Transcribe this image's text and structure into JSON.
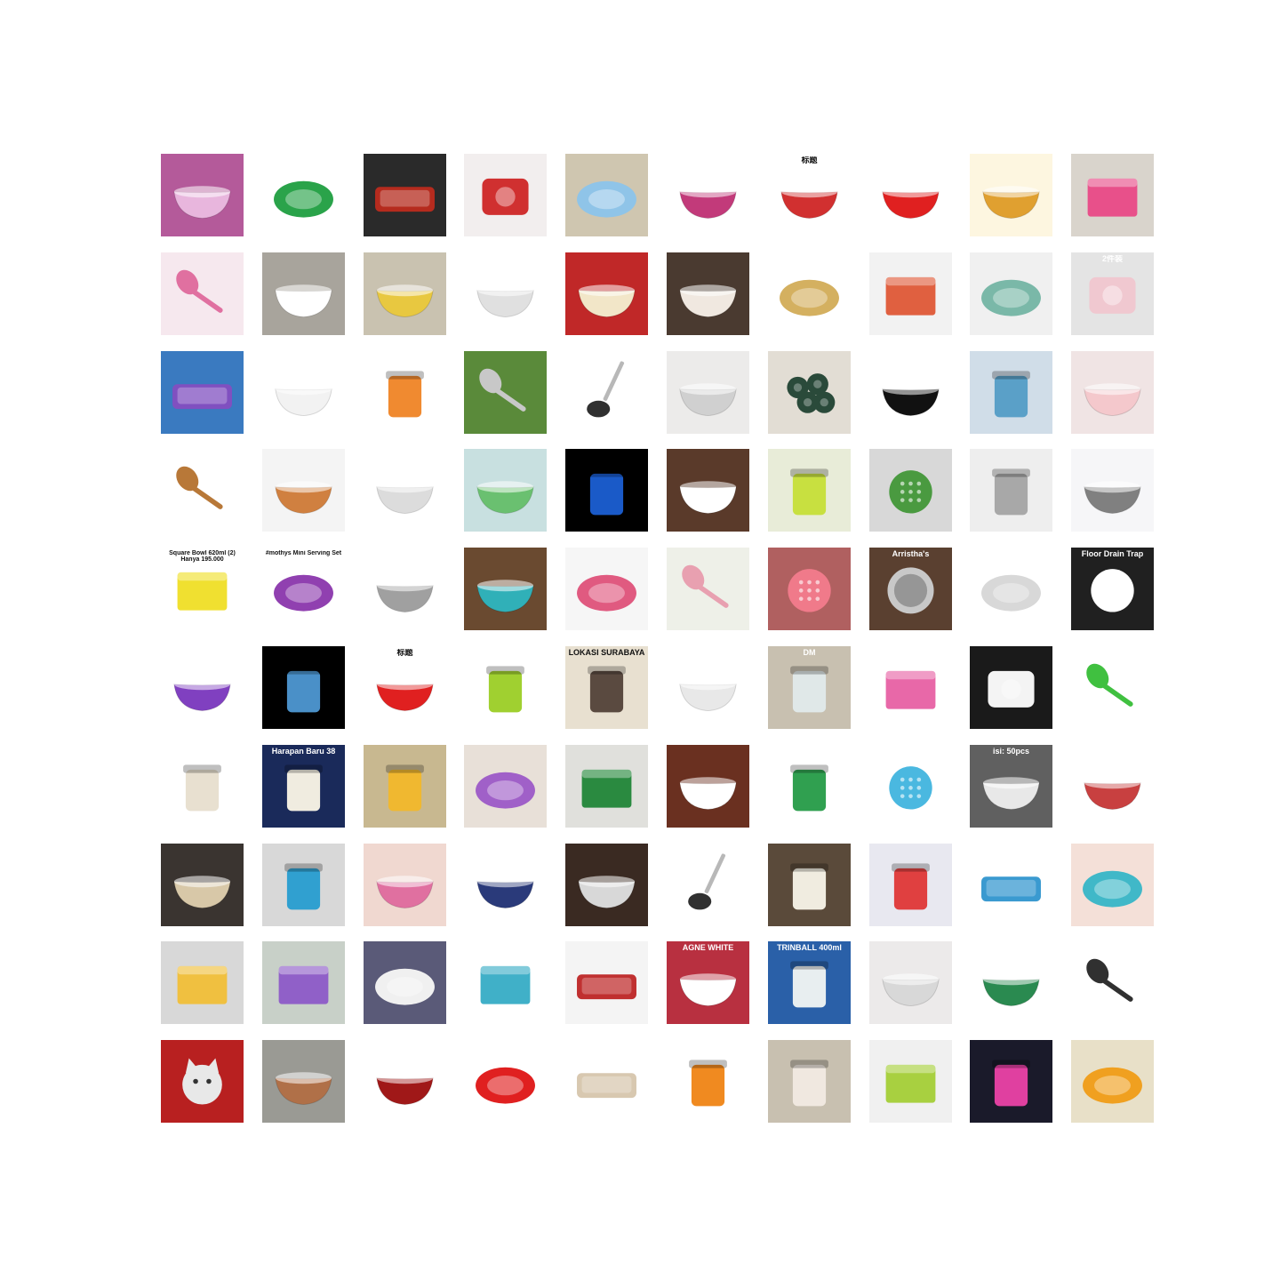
{
  "grid": {
    "rows": 10,
    "cols": 10,
    "items": [
      {
        "icon": "bowl-icon",
        "label": "",
        "bg": "#b45a9a",
        "fg": "#e8b6dd"
      },
      {
        "icon": "plate-icon",
        "label": "",
        "bg": "#ffffff",
        "fg": "#2aa34a"
      },
      {
        "icon": "tray-icon",
        "label": "",
        "bg": "#2a2a2a",
        "fg": "#b52b1e"
      },
      {
        "icon": "tableware-icon",
        "label": "",
        "bg": "#f2eeee",
        "fg": "#d03030"
      },
      {
        "icon": "plate-icon",
        "label": "",
        "bg": "#cfc6b0",
        "fg": "#8fc4e8"
      },
      {
        "icon": "bowl-icon",
        "label": "",
        "bg": "#ffffff",
        "fg": "#c23a7a"
      },
      {
        "icon": "bowl-icon",
        "label": "标题",
        "bg": "#ffffff",
        "fg": "#d13030"
      },
      {
        "icon": "bowl-icon",
        "label": "",
        "bg": "#ffffff",
        "fg": "#e02020"
      },
      {
        "icon": "bowl-icon",
        "label": "",
        "bg": "#fdf6e0",
        "fg": "#e0a030"
      },
      {
        "icon": "box-icon",
        "label": "",
        "bg": "#d9d4cc",
        "fg": "#e8508a"
      },
      {
        "icon": "spoon-icon",
        "label": "",
        "bg": "#f6e8ee",
        "fg": "#e070a0"
      },
      {
        "icon": "bowl-icon",
        "label": "",
        "bg": "#a8a49c",
        "fg": "#ffffff"
      },
      {
        "icon": "bowl-icon",
        "label": "",
        "bg": "#c9c2b0",
        "fg": "#e8c840"
      },
      {
        "icon": "bowl-icon",
        "label": "",
        "bg": "#ffffff",
        "fg": "#e0e0e0"
      },
      {
        "icon": "bowl-icon",
        "label": "",
        "bg": "#c02828",
        "fg": "#f2e6c8"
      },
      {
        "icon": "bowl-icon",
        "label": "",
        "bg": "#4a3a30",
        "fg": "#f0e8e0"
      },
      {
        "icon": "plate-icon",
        "label": "",
        "bg": "#ffffff",
        "fg": "#d4b060"
      },
      {
        "icon": "box-icon",
        "label": "",
        "bg": "#f2f2f2",
        "fg": "#e06040"
      },
      {
        "icon": "plate-icon",
        "label": "",
        "bg": "#f0f0f0",
        "fg": "#7ab8a8"
      },
      {
        "icon": "tableware-icon",
        "label": "2件装",
        "bg": "#e4e4e4",
        "fg": "#f0c8d0"
      },
      {
        "icon": "tray-icon",
        "label": "",
        "bg": "#3a7ac0",
        "fg": "#8050c0"
      },
      {
        "icon": "bowl-icon",
        "label": "",
        "bg": "#ffffff",
        "fg": "#f2f2f2"
      },
      {
        "icon": "jar-icon",
        "label": "",
        "bg": "#ffffff",
        "fg": "#f08a30"
      },
      {
        "icon": "spoon-icon",
        "label": "",
        "bg": "#5a8a3a",
        "fg": "#c8c8c8"
      },
      {
        "icon": "ladle-icon",
        "label": "",
        "bg": "#ffffff",
        "fg": "#303030"
      },
      {
        "icon": "bowl-icon",
        "label": "",
        "bg": "#ecebea",
        "fg": "#d0d0d0"
      },
      {
        "icon": "flower-icon",
        "label": "",
        "bg": "#e2ddd4",
        "fg": "#2a4a3a"
      },
      {
        "icon": "bowl-icon",
        "label": "",
        "bg": "#ffffff",
        "fg": "#111111"
      },
      {
        "icon": "jar-icon",
        "label": "",
        "bg": "#d0dde8",
        "fg": "#5aa0c8"
      },
      {
        "icon": "bowl-icon",
        "label": "",
        "bg": "#f0e4e4",
        "fg": "#f4c8cc"
      },
      {
        "icon": "spoon-icon",
        "label": "",
        "bg": "#ffffff",
        "fg": "#b87838"
      },
      {
        "icon": "bowl-icon",
        "label": "",
        "bg": "#f4f4f4",
        "fg": "#d08040"
      },
      {
        "icon": "bowl-icon",
        "label": "",
        "bg": "#ffffff",
        "fg": "#dcdcdc"
      },
      {
        "icon": "bowl-icon",
        "label": "",
        "bg": "#c8e0e0",
        "fg": "#6ac070"
      },
      {
        "icon": "jar-icon",
        "label": "",
        "bg": "#000000",
        "fg": "#1a5ac8"
      },
      {
        "icon": "bowl-icon",
        "label": "",
        "bg": "#5a3a2a",
        "fg": "#ffffff"
      },
      {
        "icon": "jar-icon",
        "label": "",
        "bg": "#e8ecd8",
        "fg": "#c8e040"
      },
      {
        "icon": "strainer-icon",
        "label": "",
        "bg": "#d8d8d8",
        "fg": "#4a9a40"
      },
      {
        "icon": "jar-icon",
        "label": "",
        "bg": "#eeeeee",
        "fg": "#a8a8a8"
      },
      {
        "icon": "bowl-icon",
        "label": "",
        "bg": "#f6f6f8",
        "fg": "#808080"
      },
      {
        "icon": "box-icon",
        "label": "Square Bowl 620ml (2) Hanya 195.000",
        "bg": "#ffffff",
        "fg": "#f0e030"
      },
      {
        "icon": "plate-icon",
        "label": "#mothys Mini Serving Set",
        "bg": "#ffffff",
        "fg": "#9040b0"
      },
      {
        "icon": "bowl-icon",
        "label": "",
        "bg": "#ffffff",
        "fg": "#a0a0a0"
      },
      {
        "icon": "bowl-icon",
        "label": "",
        "bg": "#6a4a30",
        "fg": "#30b0b8"
      },
      {
        "icon": "plate-icon",
        "label": "",
        "bg": "#f6f6f6",
        "fg": "#e05a80"
      },
      {
        "icon": "spoon-icon",
        "label": "",
        "bg": "#eef0e8",
        "fg": "#e8a0b0"
      },
      {
        "icon": "strainer-icon",
        "label": "",
        "bg": "#b06060",
        "fg": "#f07a8a"
      },
      {
        "icon": "lid-icon",
        "label": "Arristha's",
        "bg": "#5a4030",
        "fg": "#c8c8c8"
      },
      {
        "icon": "plate-icon",
        "label": "",
        "bg": "#ffffff",
        "fg": "#d8d8d8"
      },
      {
        "icon": "strainer-icon",
        "label": "Floor Drain Trap",
        "bg": "#202020",
        "fg": "#ffffff"
      },
      {
        "icon": "bowl-icon",
        "label": "",
        "bg": "#ffffff",
        "fg": "#8040c0"
      },
      {
        "icon": "jar-icon",
        "label": "",
        "bg": "#000000",
        "fg": "#4a90c8"
      },
      {
        "icon": "bowl-icon",
        "label": "标题",
        "bg": "#ffffff",
        "fg": "#e02020"
      },
      {
        "icon": "jar-icon",
        "label": "",
        "bg": "#ffffff",
        "fg": "#a0d030"
      },
      {
        "icon": "jar-icon",
        "label": "LOKASI SURABAYA",
        "bg": "#e8e0d0",
        "fg": "#5a4a40"
      },
      {
        "icon": "bowl-icon",
        "label": "",
        "bg": "#ffffff",
        "fg": "#e8e8e8"
      },
      {
        "icon": "jar-icon",
        "label": "DM",
        "bg": "#c8c0b0",
        "fg": "#e0e8e8"
      },
      {
        "icon": "box-icon",
        "label": "",
        "bg": "#ffffff",
        "fg": "#e868a8"
      },
      {
        "icon": "tableware-icon",
        "label": "",
        "bg": "#1a1a1a",
        "fg": "#f4f4f4"
      },
      {
        "icon": "spoon-icon",
        "label": "",
        "bg": "#ffffff",
        "fg": "#40c040"
      },
      {
        "icon": "jar-icon",
        "label": "",
        "bg": "#ffffff",
        "fg": "#e8e0d0"
      },
      {
        "icon": "jar-icon",
        "label": "Harapan Baru 38",
        "bg": "#1a2a5a",
        "fg": "#f0ece0"
      },
      {
        "icon": "jar-icon",
        "label": "",
        "bg": "#c8b890",
        "fg": "#f0b830"
      },
      {
        "icon": "plate-icon",
        "label": "",
        "bg": "#e8e0d8",
        "fg": "#a060c8"
      },
      {
        "icon": "box-icon",
        "label": "",
        "bg": "#e0e0dc",
        "fg": "#2a8a40"
      },
      {
        "icon": "bowl-icon",
        "label": "",
        "bg": "#6a3020",
        "fg": "#ffffff"
      },
      {
        "icon": "jar-icon",
        "label": "",
        "bg": "#ffffff",
        "fg": "#30a050"
      },
      {
        "icon": "strainer-icon",
        "label": "",
        "bg": "#ffffff",
        "fg": "#4ab8e0"
      },
      {
        "icon": "bowl-icon",
        "label": "isi: 50pcs",
        "bg": "#606060",
        "fg": "#e8e8e8"
      },
      {
        "icon": "bowl-icon",
        "label": "",
        "bg": "#ffffff",
        "fg": "#c84040"
      },
      {
        "icon": "bowl-icon",
        "label": "",
        "bg": "#3a3430",
        "fg": "#d8c8a8"
      },
      {
        "icon": "jar-icon",
        "label": "",
        "bg": "#d8d8d8",
        "fg": "#30a0d0"
      },
      {
        "icon": "bowl-icon",
        "label": "",
        "bg": "#f0d8d0",
        "fg": "#e070a0"
      },
      {
        "icon": "bowl-icon",
        "label": "",
        "bg": "#ffffff",
        "fg": "#2a3a7a"
      },
      {
        "icon": "bowl-icon",
        "label": "",
        "bg": "#3a2a22",
        "fg": "#d8d8d8"
      },
      {
        "icon": "ladle-icon",
        "label": "",
        "bg": "#ffffff",
        "fg": "#303030"
      },
      {
        "icon": "jar-icon",
        "label": "",
        "bg": "#5a4a3a",
        "fg": "#f0ece0"
      },
      {
        "icon": "jar-icon",
        "label": "",
        "bg": "#e8e8f0",
        "fg": "#e04040"
      },
      {
        "icon": "tray-icon",
        "label": "",
        "bg": "#ffffff",
        "fg": "#3a9ad0"
      },
      {
        "icon": "plate-icon",
        "label": "",
        "bg": "#f4e0d8",
        "fg": "#40b8c8"
      },
      {
        "icon": "box-icon",
        "label": "",
        "bg": "#d8d8d8",
        "fg": "#f0c040"
      },
      {
        "icon": "box-icon",
        "label": "",
        "bg": "#c8d0c8",
        "fg": "#9060c8"
      },
      {
        "icon": "plate-icon",
        "label": "",
        "bg": "#5a5a78",
        "fg": "#f0f0f0"
      },
      {
        "icon": "box-icon",
        "label": "",
        "bg": "#ffffff",
        "fg": "#40b0c8"
      },
      {
        "icon": "tray-icon",
        "label": "",
        "bg": "#f4f4f4",
        "fg": "#c03030"
      },
      {
        "icon": "bowl-icon",
        "label": "AGNE WHITE",
        "bg": "#b83040",
        "fg": "#ffffff"
      },
      {
        "icon": "jar-icon",
        "label": "TRINBALL 400ml",
        "bg": "#2a60a8",
        "fg": "#e8eef0"
      },
      {
        "icon": "bowl-icon",
        "label": "",
        "bg": "#eceaea",
        "fg": "#d8d8d8"
      },
      {
        "icon": "bowl-icon",
        "label": "",
        "bg": "#ffffff",
        "fg": "#2a8a50"
      },
      {
        "icon": "spoon-icon",
        "label": "",
        "bg": "#ffffff",
        "fg": "#303030"
      },
      {
        "icon": "cat-icon",
        "label": "",
        "bg": "#b82020",
        "fg": "#e8e8e8"
      },
      {
        "icon": "bowl-icon",
        "label": "",
        "bg": "#9a9a94",
        "fg": "#b07048"
      },
      {
        "icon": "bowl-icon",
        "label": "",
        "bg": "#ffffff",
        "fg": "#a01818"
      },
      {
        "icon": "plate-icon",
        "label": "",
        "bg": "#ffffff",
        "fg": "#e02020"
      },
      {
        "icon": "tray-icon",
        "label": "",
        "bg": "#ffffff",
        "fg": "#d8c8b0"
      },
      {
        "icon": "jar-icon",
        "label": "",
        "bg": "#ffffff",
        "fg": "#f08a20"
      },
      {
        "icon": "jar-icon",
        "label": "",
        "bg": "#c8c0b0",
        "fg": "#f0e8e0"
      },
      {
        "icon": "box-icon",
        "label": "",
        "bg": "#f0f0f0",
        "fg": "#a8d040"
      },
      {
        "icon": "jar-icon",
        "label": "",
        "bg": "#1a1a2a",
        "fg": "#e040a0"
      },
      {
        "icon": "plate-icon",
        "label": "",
        "bg": "#e8e0c8",
        "fg": "#f0a020"
      }
    ]
  }
}
